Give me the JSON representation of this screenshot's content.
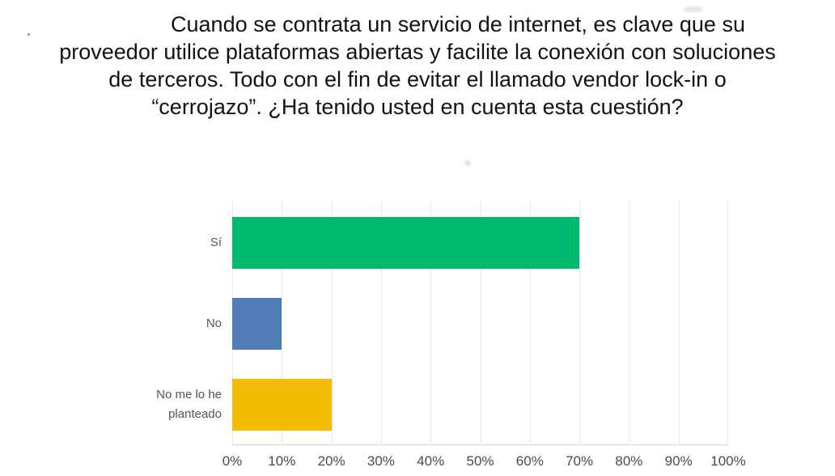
{
  "title": {
    "lines": [
      "Cuando se contrata un servicio de internet, es clave que su",
      "proveedor utilice plataformas abiertas y facilite la conexión con soluciones",
      "de terceros. Todo con el fin de evitar el llamado vendor lock-in o",
      "“cerrojazo”. ¿Ha tenido usted en cuenta esta cuestión?"
    ]
  },
  "chart_data": {
    "type": "bar",
    "orientation": "horizontal",
    "title": "",
    "xlabel": "",
    "ylabel": "",
    "categories": [
      "Sí",
      "No",
      "No me lo he planteado"
    ],
    "values": [
      70,
      10,
      20
    ],
    "unit": "%",
    "xlim": [
      0,
      100
    ],
    "x_tick_labels": [
      "0%",
      "10%",
      "20%",
      "30%",
      "40%",
      "50%",
      "60%",
      "70%",
      "80%",
      "90%",
      "100%"
    ],
    "grid": "vertical gridlines on, 10% steps",
    "legend": "none",
    "bar_colors": [
      "#00B96F",
      "#4F7CB5",
      "#F5BD01"
    ],
    "grid_color": "#E8E8E8",
    "axis_line_color": "#D8D8D8",
    "tick_label_color": "#454D54",
    "category_label_color": "#4D565E"
  }
}
